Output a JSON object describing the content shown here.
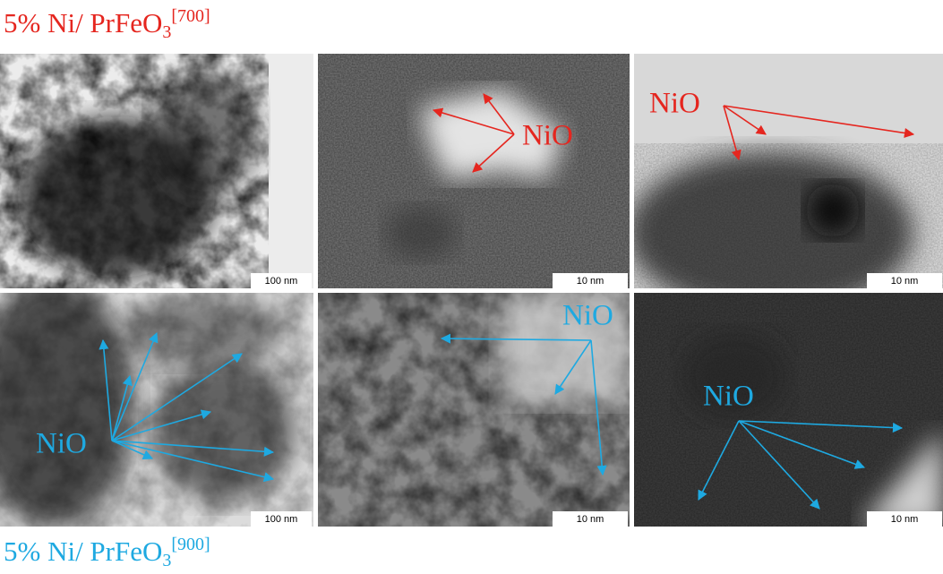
{
  "figure": {
    "top_label": {
      "text": "5% Ni/ PrFeO",
      "subscript": "3",
      "superscript": "[700]"
    },
    "bottom_label": {
      "text": "5% Ni/ PrFeO",
      "subscript": "3",
      "superscript": "[900]"
    },
    "panels": [
      {
        "scale_bar": "100 nm"
      },
      {
        "scale_bar": "10 nm",
        "annotation": "NiO"
      },
      {
        "scale_bar": "10 nm",
        "annotation": "NiO"
      },
      {
        "scale_bar": "100 nm",
        "annotation": "NiO"
      },
      {
        "scale_bar": "10 nm",
        "annotation": "NiO"
      },
      {
        "scale_bar": "10 nm",
        "annotation": "NiO"
      }
    ]
  }
}
